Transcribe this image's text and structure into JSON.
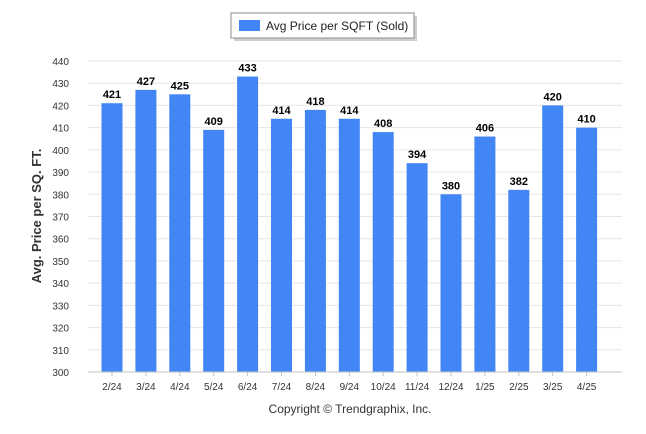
{
  "chart_data": {
    "type": "bar",
    "categories": [
      "2/24",
      "3/24",
      "4/24",
      "5/24",
      "6/24",
      "7/24",
      "8/24",
      "9/24",
      "10/24",
      "11/24",
      "12/24",
      "1/25",
      "2/25",
      "3/25",
      "4/25"
    ],
    "series": [
      {
        "name": "Avg Price per SQFT (Sold)",
        "values": [
          421,
          427,
          425,
          409,
          433,
          414,
          418,
          414,
          408,
          394,
          380,
          406,
          382,
          420,
          410
        ],
        "color": "#4285f4"
      }
    ],
    "ylabel": "Avg. Price per SQ. FT.",
    "xlabel": "",
    "ylim": [
      300,
      440
    ],
    "yticks": [
      300,
      310,
      320,
      330,
      340,
      350,
      360,
      370,
      380,
      390,
      400,
      410,
      420,
      430,
      440
    ],
    "grid": true,
    "legend": "top-center",
    "data_labels": true
  },
  "footer": {
    "copyright": "Copyright © Trendgraphix, Inc."
  }
}
